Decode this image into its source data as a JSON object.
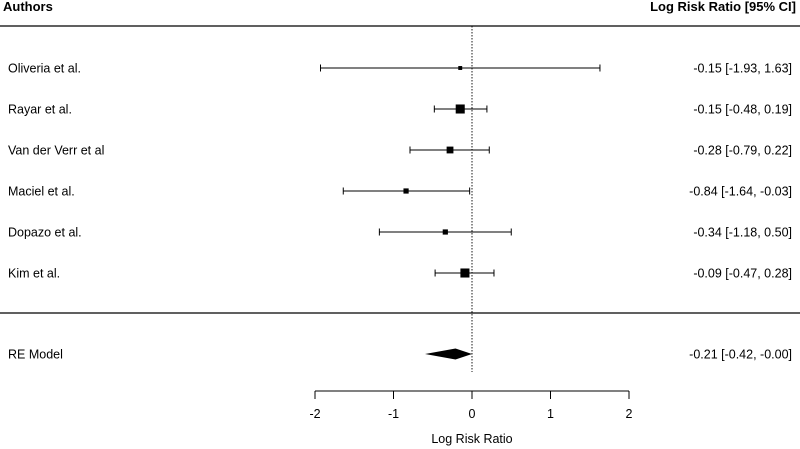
{
  "chart_data": {
    "type": "forest",
    "headers": {
      "left": "Authors",
      "right": "Log Risk Ratio  [95% CI]"
    },
    "studies": [
      {
        "name": "Oliveria et al.",
        "est": -0.15,
        "lo": -1.93,
        "hi": 1.63,
        "ci_text": "-0.15 [-1.93,  1.63]",
        "weight": 0.6
      },
      {
        "name": "Rayar et al.",
        "est": -0.15,
        "lo": -0.48,
        "hi": 0.19,
        "ci_text": "-0.15 [-0.48,  0.19]",
        "weight": 2.2
      },
      {
        "name": "Van der Verr et al",
        "est": -0.28,
        "lo": -0.79,
        "hi": 0.22,
        "ci_text": "-0.28 [-0.79,  0.22]",
        "weight": 1.5
      },
      {
        "name": "Maciel et al.",
        "est": -0.84,
        "lo": -1.64,
        "hi": -0.03,
        "ci_text": "-0.84 [-1.64, -0.03]",
        "weight": 1.0
      },
      {
        "name": "Dopazo et al.",
        "est": -0.34,
        "lo": -1.18,
        "hi": 0.5,
        "ci_text": "-0.34 [-1.18,  0.50]",
        "weight": 1.0
      },
      {
        "name": "Kim et al.",
        "est": -0.09,
        "lo": -0.47,
        "hi": 0.28,
        "ci_text": "-0.09 [-0.47,  0.28]",
        "weight": 2.2
      }
    ],
    "summary": {
      "name": "RE Model",
      "est": -0.21,
      "lo": -0.42,
      "hi": -0.0,
      "ci_text": "-0.21 [-0.42, -0.00]"
    },
    "x_axis": {
      "label": "Log Risk Ratio",
      "ticks": [
        -2,
        -1,
        0,
        1,
        2
      ],
      "range": [
        -2,
        2
      ]
    },
    "reference_line": 0
  }
}
